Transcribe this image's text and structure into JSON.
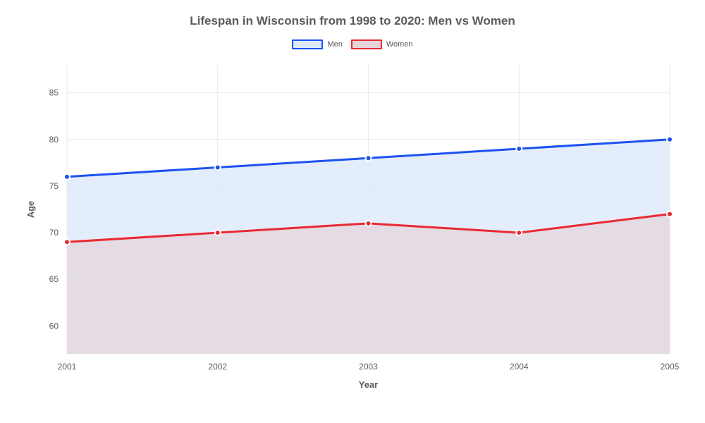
{
  "chart": {
    "type": "area-line",
    "title": "Lifespan in Wisconsin from 1998 to 2020: Men vs Women",
    "title_fontsize": 17,
    "title_color": "#5a5a5a",
    "background_color": "#ffffff",
    "plot_area_color": "#ffffff",
    "grid_color": "#e9e9e9",
    "xlabel": "Year",
    "ylabel": "Age",
    "label_fontsize": 13,
    "tick_fontsize": 12,
    "tick_color": "#5a5a5a",
    "xlim": [
      2001,
      2005
    ],
    "ylim": [
      57,
      88
    ],
    "yticks": [
      60,
      65,
      70,
      75,
      80,
      85
    ],
    "xticks": [
      2001,
      2002,
      2003,
      2004,
      2005
    ],
    "line_width": 3,
    "marker_radius": 4,
    "legend": {
      "items": [
        {
          "label": "Men",
          "color": "#1d52f3",
          "fill": "#dde8fa"
        },
        {
          "label": "Women",
          "color": "#ea2932",
          "fill": "#e4d3da"
        }
      ],
      "position": "top-center",
      "swatch_width": 44,
      "swatch_height": 14,
      "fontsize": 11
    },
    "series": [
      {
        "name": "Men",
        "color": "#1d52f3",
        "fill_color": "#dde8fa",
        "fill_opacity": 0.8,
        "x": [
          2001,
          2002,
          2003,
          2004,
          2005
        ],
        "y": [
          76,
          77,
          78,
          79,
          80
        ]
      },
      {
        "name": "Women",
        "color": "#ea2932",
        "fill_color": "#e4d3da",
        "fill_opacity": 0.7,
        "x": [
          2001,
          2002,
          2003,
          2004,
          2005
        ],
        "y": [
          69,
          70,
          71,
          70,
          72
        ]
      }
    ]
  }
}
